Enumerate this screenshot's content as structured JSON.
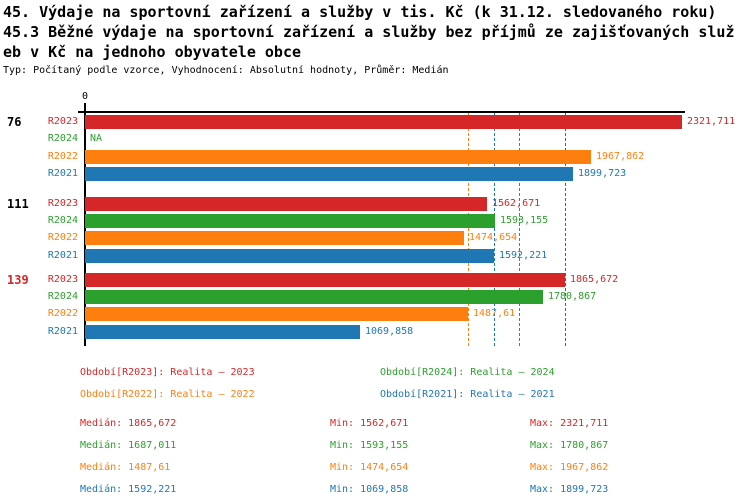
{
  "header": {
    "title_line1": "45. Výdaje na sportovní zařízení a služby v tis. Kč (k 31.12. sledovaného roku)",
    "title_line2": "45.3 Běžné výdaje na sportovní zařízení a služby bez příjmů ze zajišťovaných služ",
    "title_line3": "eb v Kč na jednoho obyvatele obce",
    "meta": "Typ: Počítaný podle vzorce, Vyhodnocení: Absolutní hodnoty, Průměr: Medián"
  },
  "colors": {
    "r2023": "#d62728",
    "r2024": "#2ca02c",
    "r2022": "#ff7f0e",
    "r2021": "#1f77b4",
    "axis": "#000000",
    "highlight_group": "#d62728",
    "plain_group": "#000000"
  },
  "axis": {
    "zero_label": "0",
    "min": 0,
    "max": 2321.711
  },
  "chart_data": {
    "type": "bar",
    "orientation": "horizontal",
    "unit": "Kč na obyvatele (tis. Kč)",
    "series_order": [
      "R2023",
      "R2024",
      "R2022",
      "R2021"
    ],
    "groups": [
      {
        "label": "76",
        "label_color_key": "plain_group",
        "bars": [
          {
            "period": "R2023",
            "value": 2321.711,
            "display": "2321,711",
            "color_key": "r2023"
          },
          {
            "period": "R2024",
            "value": null,
            "display": "NA",
            "color_key": "r2024"
          },
          {
            "period": "R2022",
            "value": 1967.862,
            "display": "1967,862",
            "color_key": "r2022"
          },
          {
            "period": "R2021",
            "value": 1899.723,
            "display": "1899,723",
            "color_key": "r2021"
          }
        ]
      },
      {
        "label": "111",
        "label_color_key": "plain_group",
        "bars": [
          {
            "period": "R2023",
            "value": 1562.671,
            "display": "1562,671",
            "color_key": "r2023"
          },
          {
            "period": "R2024",
            "value": 1593.155,
            "display": "1593,155",
            "color_key": "r2024"
          },
          {
            "period": "R2022",
            "value": 1474.654,
            "display": "1474,654",
            "color_key": "r2022"
          },
          {
            "period": "R2021",
            "value": 1592.221,
            "display": "1592,221",
            "color_key": "r2021"
          }
        ]
      },
      {
        "label": "139",
        "label_color_key": "highlight_group",
        "bars": [
          {
            "period": "R2023",
            "value": 1865.672,
            "display": "1865,672",
            "color_key": "r2023"
          },
          {
            "period": "R2024",
            "value": 1780.867,
            "display": "1780,867",
            "color_key": "r2024"
          },
          {
            "period": "R2022",
            "value": 1487.61,
            "display": "1487,61",
            "color_key": "r2022"
          },
          {
            "period": "R2021",
            "value": 1069.858,
            "display": "1069,858",
            "color_key": "r2021"
          }
        ]
      }
    ],
    "median_lines": [
      {
        "color_key": "r2022",
        "value": 1487.61
      },
      {
        "color_key": "r2021",
        "value": 1592.221
      },
      {
        "color_key": "r2024",
        "value": 1687.011
      },
      {
        "color_key": "r2023",
        "value": 1865.672
      }
    ]
  },
  "legend": {
    "items": [
      {
        "label": "Období[R2023]: Realita – 2023",
        "color_key": "r2023"
      },
      {
        "label": "Období[R2024]: Realita – 2024",
        "color_key": "r2024"
      },
      {
        "label": "Období[R2022]: Realita – 2022",
        "color_key": "r2022"
      },
      {
        "label": "Období[R2021]: Realita – 2021",
        "color_key": "r2021"
      }
    ]
  },
  "stats": {
    "rows": [
      {
        "color_key": "r2023",
        "median": "Medián: 1865,672",
        "min": "Min: 1562,671",
        "max": "Max: 2321,711"
      },
      {
        "color_key": "r2024",
        "median": "Medián: 1687,011",
        "min": "Min: 1593,155",
        "max": "Max: 1780,867"
      },
      {
        "color_key": "r2022",
        "median": "Medián: 1487,61",
        "min": "Min: 1474,654",
        "max": "Max: 1967,862"
      },
      {
        "color_key": "r2021",
        "median": "Medián: 1592,221",
        "min": "Min: 1069,858",
        "max": "Max: 1899,723"
      }
    ]
  }
}
